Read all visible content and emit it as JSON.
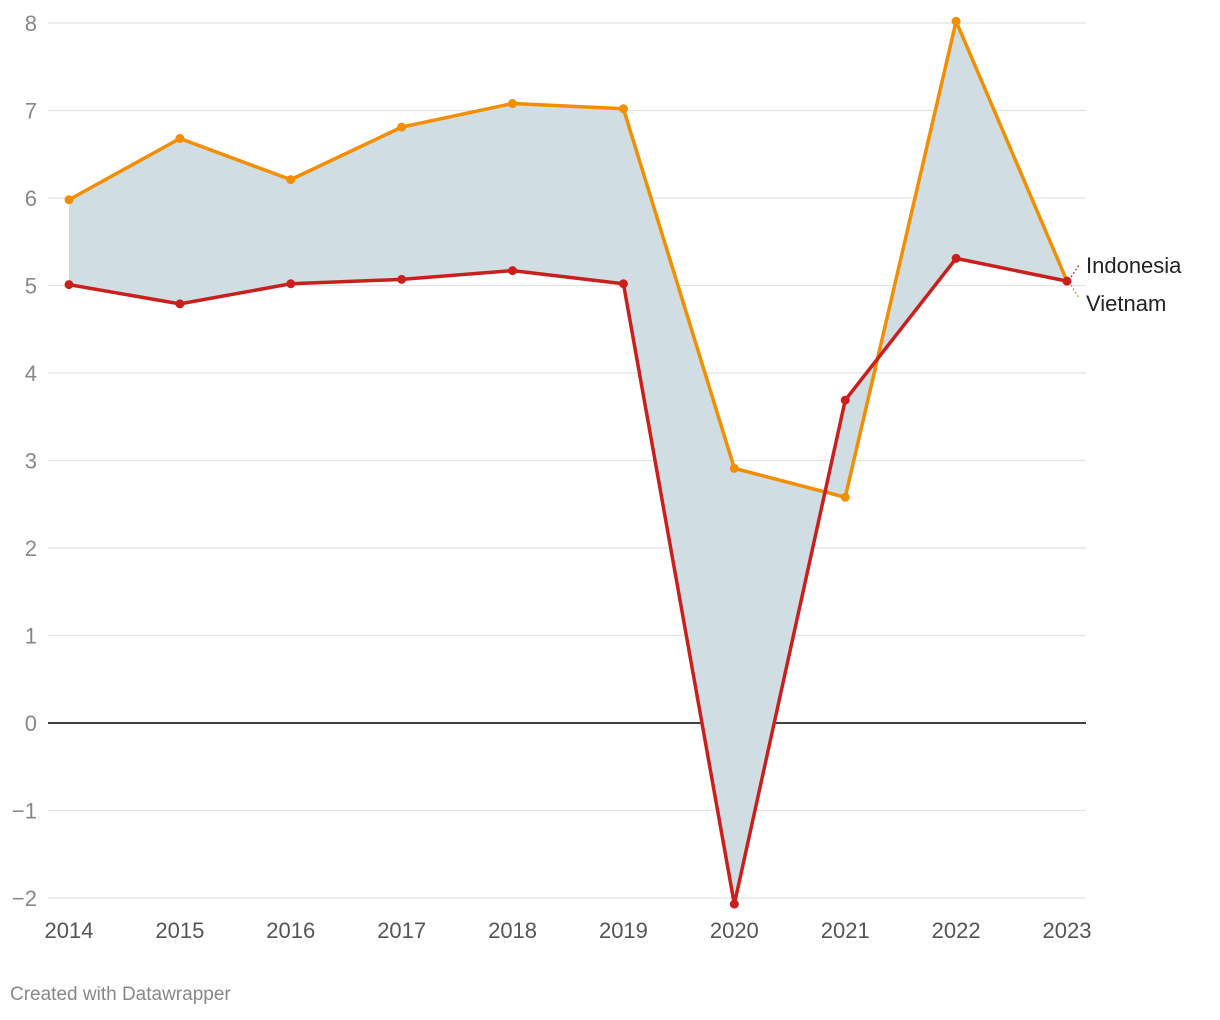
{
  "chart_data": {
    "type": "line",
    "title": "",
    "xlabel": "",
    "ylabel": "",
    "x": [
      "2014",
      "2015",
      "2016",
      "2017",
      "2018",
      "2019",
      "2020",
      "2021",
      "2022",
      "2023"
    ],
    "ylim": [
      -2,
      8
    ],
    "yticks": [
      "8",
      "7",
      "6",
      "5",
      "4",
      "3",
      "2",
      "1",
      "0",
      "−1",
      "−2"
    ],
    "ytick_values": [
      8,
      7,
      6,
      5,
      4,
      3,
      2,
      1,
      0,
      -1,
      -2
    ],
    "grid": true,
    "area_between_series": true,
    "area_color": "#d0dde3",
    "series": [
      {
        "name": "Vietnam",
        "color": "#f28e00",
        "values": [
          5.98,
          6.68,
          6.21,
          6.81,
          7.08,
          7.02,
          2.91,
          2.58,
          8.02,
          5.05
        ]
      },
      {
        "name": "Indonesia",
        "color": "#c9201d",
        "values": [
          5.01,
          4.79,
          5.02,
          5.07,
          5.17,
          5.02,
          -2.07,
          3.69,
          5.31,
          5.05
        ]
      }
    ]
  },
  "footer": {
    "credit": "Created with Datawrapper"
  }
}
